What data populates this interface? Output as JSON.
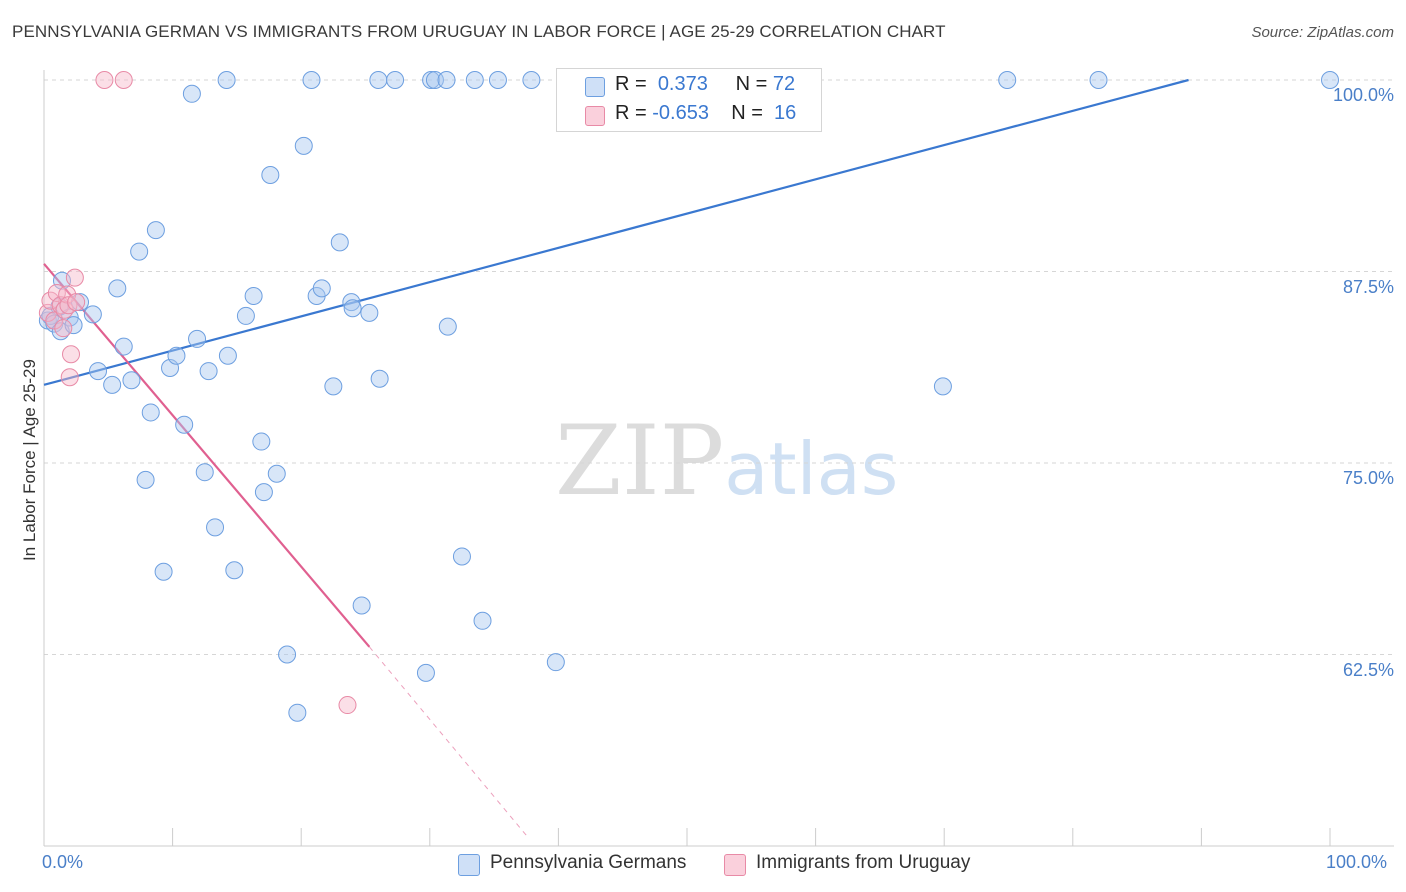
{
  "header": {
    "title": "PENNSYLVANIA GERMAN VS IMMIGRANTS FROM URUGUAY IN LABOR FORCE | AGE 25-29 CORRELATION CHART",
    "source": "Source: ZipAtlas.com"
  },
  "watermark": {
    "zip": "ZIP",
    "atlas": "atlas"
  },
  "legend": {
    "rows": [
      {
        "r_label": "R =",
        "r_value": "0.373",
        "n_label": "N =",
        "n_value": "72",
        "color": "#a9c8f0"
      },
      {
        "r_label": "R =",
        "r_value": "-0.653",
        "n_label": "N =",
        "n_value": "16",
        "color": "#f6b8c9"
      }
    ]
  },
  "bottom_legend": {
    "items": [
      {
        "label": "Pennsylvania Germans",
        "color": "#a9c8f0"
      },
      {
        "label": "Immigrants from Uruguay",
        "color": "#f6b8c9"
      }
    ]
  },
  "chart_data": {
    "type": "scatter",
    "title": "PENNSYLVANIA GERMAN VS IMMIGRANTS FROM URUGUAY IN LABOR FORCE | AGE 25-29 CORRELATION CHART",
    "xlabel": "",
    "ylabel": "In Labor Force | Age 25-29",
    "xlim": [
      0,
      100
    ],
    "ylim": [
      50,
      100
    ],
    "x_tick_labels": [
      "0.0%",
      "100.0%"
    ],
    "y_ticks": [
      62.5,
      75.0,
      87.5,
      100.0
    ],
    "y_tick_labels": [
      "62.5%",
      "75.0%",
      "87.5%",
      "100.0%"
    ],
    "grid": "horizontal dashed",
    "legend_position": "top-center",
    "series": [
      {
        "name": "Pennsylvania Germans",
        "color": "#a9c8f0",
        "stroke": "#6d9fe0",
        "line_color": "#3a78d0",
        "trend": {
          "x0": 0,
          "y0": 80.1,
          "x1": 89,
          "y1": 100.0
        },
        "points": [
          [
            0.3,
            84.3
          ],
          [
            0.5,
            84.6
          ],
          [
            0.8,
            84.1
          ],
          [
            1.2,
            85.2
          ],
          [
            1.3,
            83.6
          ],
          [
            1.4,
            86.9
          ],
          [
            2.0,
            84.5
          ],
          [
            2.3,
            84.0
          ],
          [
            2.8,
            85.5
          ],
          [
            3.8,
            84.7
          ],
          [
            4.2,
            81.0
          ],
          [
            5.3,
            80.1
          ],
          [
            5.7,
            86.4
          ],
          [
            6.2,
            82.6
          ],
          [
            6.8,
            80.4
          ],
          [
            7.4,
            88.8
          ],
          [
            8.3,
            78.3
          ],
          [
            8.7,
            90.2
          ],
          [
            7.9,
            73.9
          ],
          [
            9.3,
            67.9
          ],
          [
            9.8,
            81.2
          ],
          [
            10.3,
            82.0
          ],
          [
            10.9,
            77.5
          ],
          [
            11.5,
            99.1
          ],
          [
            11.9,
            83.1
          ],
          [
            12.5,
            74.4
          ],
          [
            12.8,
            81.0
          ],
          [
            13.3,
            70.8
          ],
          [
            14.3,
            82.0
          ],
          [
            14.2,
            100.0
          ],
          [
            14.8,
            68.0
          ],
          [
            15.7,
            84.6
          ],
          [
            16.3,
            85.9
          ],
          [
            16.9,
            76.4
          ],
          [
            17.1,
            73.1
          ],
          [
            17.6,
            93.8
          ],
          [
            18.1,
            74.3
          ],
          [
            18.9,
            62.5
          ],
          [
            19.7,
            58.7
          ],
          [
            20.2,
            95.7
          ],
          [
            20.8,
            100.0
          ],
          [
            21.2,
            85.9
          ],
          [
            21.6,
            86.4
          ],
          [
            22.5,
            80.0
          ],
          [
            23.0,
            89.4
          ],
          [
            23.9,
            85.5
          ],
          [
            24.0,
            85.1
          ],
          [
            24.7,
            65.7
          ],
          [
            25.3,
            84.8
          ],
          [
            26.1,
            80.5
          ],
          [
            26.0,
            100.0
          ],
          [
            27.3,
            100.0
          ],
          [
            29.7,
            61.3
          ],
          [
            30.1,
            100.0
          ],
          [
            30.4,
            100.0
          ],
          [
            31.3,
            100.0
          ],
          [
            31.4,
            83.9
          ],
          [
            32.5,
            68.9
          ],
          [
            33.5,
            100.0
          ],
          [
            34.1,
            64.7
          ],
          [
            35.3,
            100.0
          ],
          [
            37.9,
            100.0
          ],
          [
            39.8,
            62.0
          ],
          [
            41.0,
            100.0
          ],
          [
            41.6,
            100.0
          ],
          [
            43.1,
            100.0
          ],
          [
            54.3,
            100.0
          ],
          [
            58.1,
            100.0
          ],
          [
            69.9,
            80.0
          ],
          [
            74.9,
            100.0
          ],
          [
            82.0,
            100.0
          ],
          [
            100.0,
            100.0
          ]
        ]
      },
      {
        "name": "Immigrants from Uruguay",
        "color": "#f6b8c9",
        "stroke": "#e88aa6",
        "line_color": "#e06090",
        "trend": {
          "x0": 0,
          "y0": 88.0,
          "x1": 25.3,
          "y1": 63.0,
          "dashed_to": {
            "x": 37.7,
            "y": 50.5
          }
        },
        "points": [
          [
            0.3,
            84.8
          ],
          [
            0.5,
            85.6
          ],
          [
            0.8,
            84.3
          ],
          [
            1.0,
            86.1
          ],
          [
            1.3,
            85.3
          ],
          [
            1.5,
            83.8
          ],
          [
            1.6,
            85.0
          ],
          [
            1.8,
            86.0
          ],
          [
            1.9,
            85.3
          ],
          [
            2.0,
            80.6
          ],
          [
            2.1,
            82.1
          ],
          [
            2.5,
            85.5
          ],
          [
            2.4,
            87.1
          ],
          [
            4.7,
            100.0
          ],
          [
            6.2,
            100.0
          ],
          [
            23.6,
            59.2
          ]
        ]
      }
    ]
  }
}
